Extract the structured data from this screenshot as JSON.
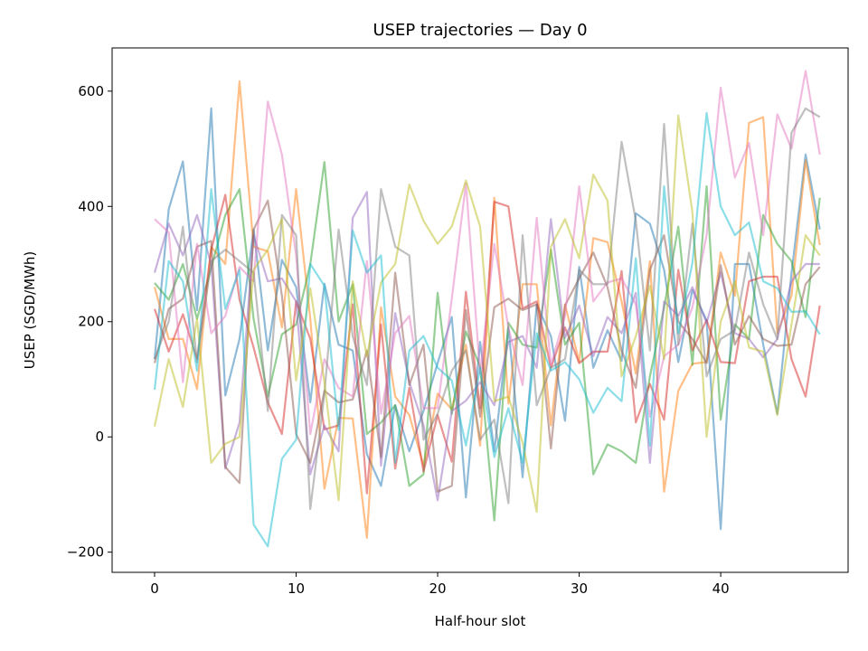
{
  "chart_data": {
    "type": "line",
    "title": "USEP trajectories — Day 0",
    "xlabel": "Half-hour slot",
    "ylabel": "USEP (SGD/MWh)",
    "xlim": [
      -3,
      49
    ],
    "ylim": [
      -235,
      675
    ],
    "xticks": [
      0,
      10,
      20,
      30,
      40
    ],
    "yticks": [
      -200,
      0,
      200,
      400,
      600
    ],
    "ytick_labels": [
      "−200",
      "0",
      "200",
      "400",
      "600"
    ],
    "grid": false,
    "legend": "none",
    "x": [
      0,
      1,
      2,
      3,
      4,
      5,
      6,
      7,
      8,
      9,
      10,
      11,
      12,
      13,
      14,
      15,
      16,
      17,
      18,
      19,
      20,
      21,
      22,
      23,
      24,
      25,
      26,
      27,
      28,
      29,
      30,
      31,
      32,
      33,
      34,
      35,
      36,
      37,
      38,
      39,
      40,
      41,
      42,
      43,
      44,
      45,
      46,
      47
    ],
    "series": [
      {
        "color": "#1f77b4",
        "values": [
          135,
          395,
          478,
          220,
          570,
          72,
          170,
          360,
          150,
          307,
          260,
          60,
          266,
          160,
          150,
          -30,
          -85,
          55,
          -25,
          45,
          128,
          208,
          -105,
          165,
          -25,
          190,
          -70,
          230,
          175,
          28,
          295,
          120,
          185,
          132,
          388,
          370,
          290,
          130,
          255,
          202,
          -160,
          300,
          300,
          160,
          40,
          284,
          490,
          360
        ]
      },
      {
        "color": "#ff7f0e",
        "values": [
          260,
          170,
          170,
          83,
          330,
          300,
          617,
          330,
          322,
          190,
          430,
          205,
          -90,
          33,
          32,
          -175,
          225,
          70,
          38,
          -50,
          75,
          48,
          160,
          -15,
          415,
          58,
          265,
          265,
          20,
          230,
          130,
          345,
          338,
          235,
          110,
          305,
          -95,
          80,
          127,
          130,
          320,
          245,
          545,
          555,
          180,
          245,
          480,
          333
        ]
      },
      {
        "color": "#2ca02c",
        "values": [
          267,
          238,
          300,
          205,
          293,
          385,
          430,
          205,
          70,
          178,
          195,
          300,
          477,
          200,
          265,
          5,
          25,
          55,
          -85,
          -65,
          250,
          40,
          183,
          122,
          -145,
          198,
          160,
          155,
          325,
          160,
          198,
          -65,
          -13,
          -25,
          -45,
          105,
          225,
          365,
          125,
          435,
          30,
          195,
          170,
          385,
          335,
          305,
          208,
          415
        ]
      },
      {
        "color": "#d62728",
        "values": [
          222,
          148,
          213,
          135,
          325,
          420,
          238,
          155,
          60,
          5,
          235,
          170,
          13,
          20,
          230,
          -98,
          195,
          -55,
          85,
          -60,
          38,
          -43,
          252,
          50,
          408,
          400,
          223,
          235,
          120,
          190,
          128,
          148,
          148,
          288,
          25,
          92,
          30,
          290,
          150,
          203,
          130,
          128,
          270,
          278,
          278,
          135,
          70,
          228
        ]
      },
      {
        "color": "#9467bd",
        "values": [
          285,
          370,
          315,
          385,
          300,
          -55,
          25,
          350,
          270,
          275,
          235,
          -65,
          20,
          -25,
          380,
          425,
          -50,
          215,
          95,
          20,
          -110,
          45,
          63,
          95,
          55,
          165,
          175,
          120,
          378,
          172,
          228,
          140,
          208,
          180,
          250,
          -45,
          235,
          210,
          260,
          198,
          285,
          180,
          170,
          138,
          170,
          270,
          300,
          300
        ]
      },
      {
        "color": "#8c564b",
        "values": [
          128,
          222,
          240,
          330,
          340,
          -52,
          -80,
          360,
          410,
          245,
          5,
          -45,
          80,
          60,
          65,
          150,
          -35,
          285,
          90,
          160,
          -95,
          -85,
          220,
          35,
          225,
          240,
          220,
          230,
          -20,
          228,
          275,
          320,
          260,
          150,
          85,
          290,
          350,
          200,
          170,
          128,
          298,
          160,
          210,
          170,
          158,
          160,
          265,
          295
        ]
      },
      {
        "color": "#e377c2",
        "values": [
          378,
          355,
          95,
          335,
          180,
          210,
          295,
          270,
          582,
          490,
          315,
          5,
          135,
          85,
          70,
          305,
          40,
          180,
          210,
          50,
          50,
          240,
          440,
          110,
          335,
          190,
          90,
          380,
          125,
          210,
          435,
          235,
          268,
          275,
          230,
          35,
          140,
          160,
          225,
          350,
          606,
          450,
          510,
          350,
          560,
          500,
          635,
          490
        ]
      },
      {
        "color": "#7f7f7f",
        "values": [
          135,
          200,
          365,
          130,
          305,
          325,
          305,
          285,
          45,
          385,
          350,
          -125,
          75,
          360,
          175,
          90,
          430,
          330,
          315,
          -5,
          40,
          115,
          150,
          -5,
          30,
          -115,
          350,
          55,
          120,
          135,
          290,
          265,
          265,
          512,
          375,
          150,
          543,
          160,
          370,
          105,
          170,
          185,
          320,
          230,
          170,
          528,
          570,
          555
        ]
      },
      {
        "color": "#bcbd22",
        "values": [
          18,
          135,
          52,
          205,
          -45,
          -12,
          0,
          290,
          325,
          378,
          98,
          258,
          95,
          -110,
          270,
          140,
          268,
          300,
          438,
          375,
          335,
          365,
          445,
          365,
          62,
          70,
          -10,
          -130,
          330,
          378,
          310,
          455,
          410,
          105,
          175,
          262,
          135,
          558,
          390,
          0,
          200,
          270,
          155,
          148,
          38,
          195,
          350,
          315
        ]
      },
      {
        "color": "#17becf",
        "values": [
          82,
          305,
          270,
          115,
          430,
          222,
          290,
          -152,
          -190,
          -38,
          -5,
          300,
          262,
          12,
          358,
          285,
          315,
          -45,
          150,
          175,
          120,
          98,
          -15,
          120,
          -35,
          50,
          -45,
          180,
          115,
          130,
          100,
          42,
          85,
          62,
          310,
          -15,
          435,
          180,
          302,
          562,
          400,
          350,
          372,
          270,
          258,
          217,
          218,
          178
        ]
      }
    ]
  }
}
